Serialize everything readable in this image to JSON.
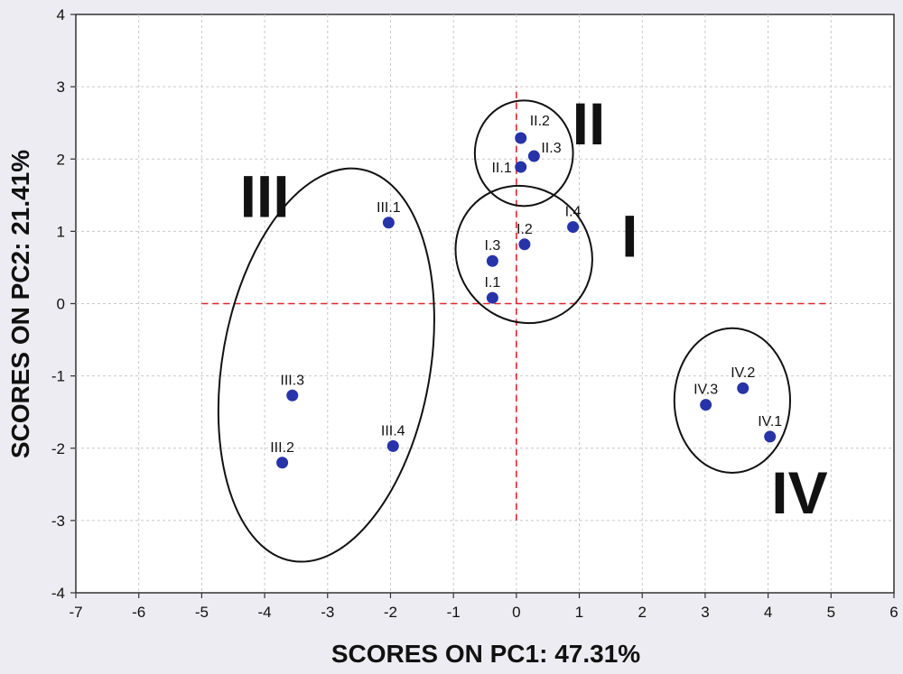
{
  "chart_data": {
    "type": "scatter",
    "xlabel": "SCORES ON PC1: 47.31%",
    "ylabel": "SCORES ON PC2: 21.41%",
    "xlim": [
      -7,
      6
    ],
    "ylim": [
      -4,
      4
    ],
    "xticks": [
      "-7",
      "-6",
      "-5",
      "-4",
      "-3",
      "-2",
      "-1",
      "0",
      "1",
      "2",
      "3",
      "4",
      "5",
      "6"
    ],
    "yticks": [
      "-4",
      "-3",
      "-2",
      "-1",
      "0",
      "1",
      "2",
      "3",
      "4"
    ],
    "grid": true,
    "zero_lines": {
      "color": "#e3242b",
      "x_range": [
        -5,
        5
      ],
      "y_range": [
        -3,
        3
      ]
    },
    "point_color": "#2733a8",
    "points": [
      {
        "label": "I.1",
        "x": -0.38,
        "y": 0.08
      },
      {
        "label": "I.2",
        "x": 0.13,
        "y": 0.82
      },
      {
        "label": "I.3",
        "x": -0.38,
        "y": 0.59
      },
      {
        "label": "I.4",
        "x": 0.9,
        "y": 1.06
      },
      {
        "label": "II.1",
        "x": 0.07,
        "y": 1.89
      },
      {
        "label": "II.2",
        "x": 0.07,
        "y": 2.29
      },
      {
        "label": "II.3",
        "x": 0.28,
        "y": 2.04
      },
      {
        "label": "III.1",
        "x": -2.03,
        "y": 1.12
      },
      {
        "label": "III.2",
        "x": -3.72,
        "y": -2.2
      },
      {
        "label": "III.3",
        "x": -3.56,
        "y": -1.27
      },
      {
        "label": "III.4",
        "x": -1.96,
        "y": -1.97
      },
      {
        "label": "IV.1",
        "x": 4.03,
        "y": -1.84
      },
      {
        "label": "IV.2",
        "x": 3.6,
        "y": -1.17
      },
      {
        "label": "IV.3",
        "x": 3.01,
        "y": -1.4
      }
    ],
    "groups": [
      {
        "label": "I",
        "center": [
          0.12,
          0.68
        ],
        "rx": 1.05,
        "ry": 0.98,
        "rotation": -43
      },
      {
        "label": "II",
        "center": [
          0.12,
          2.08
        ],
        "rx": 0.78,
        "ry": 0.73,
        "rotation": 0
      },
      {
        "label": "III",
        "center": [
          -3.02,
          -0.85
        ],
        "rx": 1.65,
        "ry": 2.75,
        "rotation": 10
      },
      {
        "label": "IV",
        "center": [
          3.43,
          -1.34
        ],
        "rx": 0.92,
        "ry": 1.0,
        "rotation": 0
      }
    ]
  }
}
